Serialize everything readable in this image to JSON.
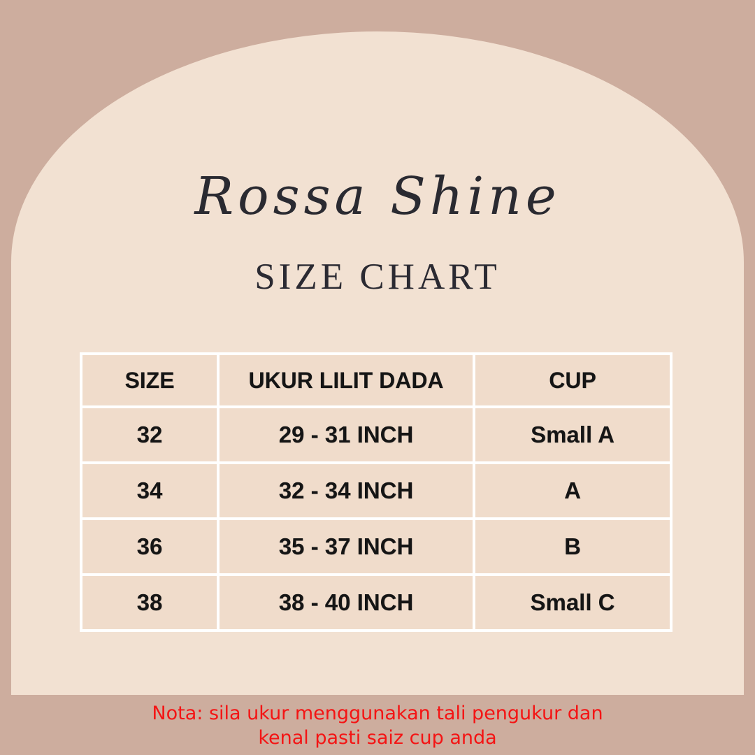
{
  "brand": "Rossa Shine",
  "title": "SIZE CHART",
  "table": {
    "headers": [
      "SIZE",
      "UKUR LILIT DADA",
      "CUP"
    ],
    "rows": [
      [
        "32",
        "29 - 31 INCH",
        "Small A"
      ],
      [
        "34",
        "32 - 34 INCH",
        "A"
      ],
      [
        "36",
        "35 - 37 INCH",
        "B"
      ],
      [
        "38",
        "38 - 40 INCH",
        "Small C"
      ]
    ]
  },
  "note": {
    "line1": "Nota: sila ukur menggunakan tali pengukur dan",
    "line2": "kenal pasti saiz cup anda"
  },
  "colors": {
    "page_background": "#cdad9e",
    "arch_background": "#f2e1d2",
    "cell_background": "#f0dccb",
    "grid_border": "#ffffff",
    "heading_text": "#2b2a32",
    "table_text": "#151515",
    "note_text": "#f41414"
  }
}
